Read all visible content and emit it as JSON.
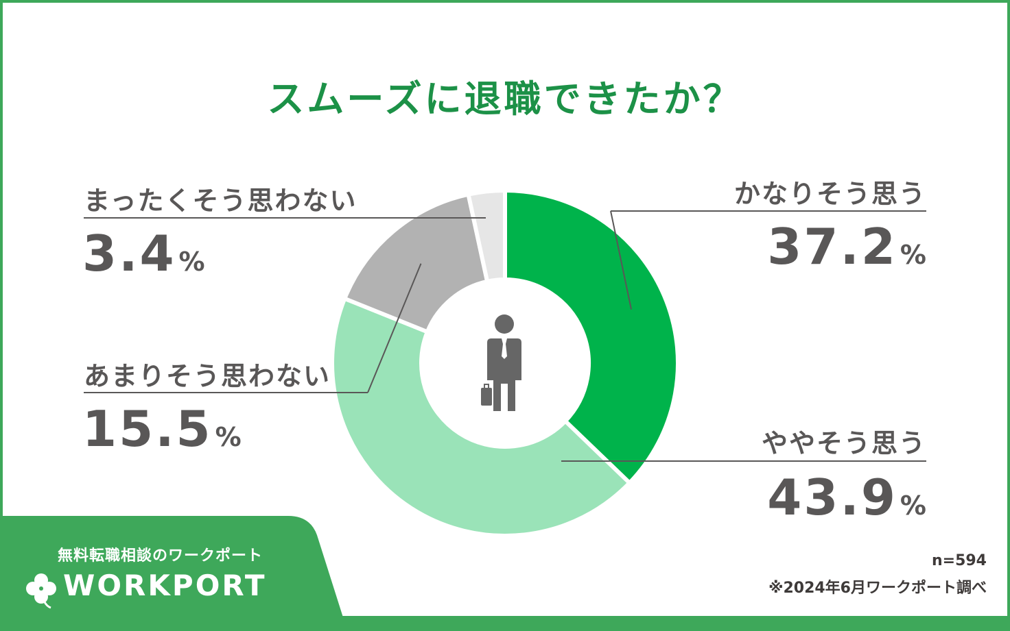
{
  "colors": {
    "border": "#3ea85a",
    "title": "#1c9147",
    "text": "#595757",
    "leader": "#595757",
    "white": "#ffffff"
  },
  "icons": {
    "center": "businessman-with-briefcase-icon",
    "logo": "clover-icon"
  },
  "chart_data": {
    "type": "pie",
    "variant": "donut",
    "title": "スムーズに退職できたか？",
    "unit": "%",
    "sample_note": "n=594",
    "source_note": "※2024年6月ワークポート調べ",
    "slices": [
      {
        "label": "かなりそう思う",
        "value": 37.2,
        "value_text": "37.2",
        "color": "#00b34b"
      },
      {
        "label": "ややそう思う",
        "value": 43.9,
        "value_text": "43.9",
        "color": "#9ae3b8"
      },
      {
        "label": "あまりそう思わない",
        "value": 15.5,
        "value_text": "15.5",
        "color": "#b2b2b2"
      },
      {
        "label": "まったくそう思わない",
        "value": 3.4,
        "value_text": "3.4",
        "color": "#e6e6e6"
      }
    ]
  },
  "brand": {
    "tagline": "無料転職相談のワークポート",
    "name": "WORKPORT"
  }
}
